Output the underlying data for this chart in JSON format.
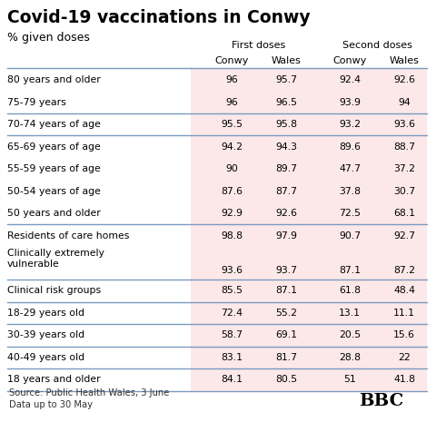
{
  "title": "Covid-19 vaccinations in Conwy",
  "subtitle": "% given doses",
  "col_headers_group": [
    "First doses",
    "Second doses"
  ],
  "col_headers": [
    "Conwy",
    "Wales",
    "Conwy",
    "Wales"
  ],
  "rows": [
    [
      "80 years and older",
      "96",
      "95.7",
      "92.4",
      "92.6"
    ],
    [
      "75-79 years",
      "96",
      "96.5",
      "93.9",
      "94"
    ],
    [
      "70-74 years of age",
      "95.5",
      "95.8",
      "93.2",
      "93.6"
    ],
    [
      "65-69 years of age",
      "94.2",
      "94.3",
      "89.6",
      "88.7"
    ],
    [
      "55-59 years of age",
      "90",
      "89.7",
      "47.7",
      "37.2"
    ],
    [
      "50-54 years of age",
      "87.6",
      "87.7",
      "37.8",
      "30.7"
    ],
    [
      "50 years and older",
      "92.9",
      "92.6",
      "72.5",
      "68.1"
    ],
    [
      "Residents of care homes",
      "98.8",
      "97.9",
      "90.7",
      "92.7"
    ],
    [
      "Clinically extremely\nvulnerable",
      "93.6",
      "93.7",
      "87.1",
      "87.2"
    ],
    [
      "Clinical risk groups",
      "85.5",
      "87.1",
      "61.8",
      "48.4"
    ],
    [
      "18-29 years old",
      "72.4",
      "55.2",
      "13.1",
      "11.1"
    ],
    [
      "30-39 years old",
      "58.7",
      "69.1",
      "20.5",
      "15.6"
    ],
    [
      "40-49 years old",
      "83.1",
      "81.7",
      "28.8",
      "22"
    ],
    [
      "18 years and older",
      "84.1",
      "80.5",
      "51",
      "41.8"
    ]
  ],
  "footer_left": "Source: Public Health Wales, 3 June\nData up to 30 May",
  "footer_right": "BBC",
  "bg_color": "#ffffff",
  "row_bg_pink": "#fce8e8",
  "separator_color": "#7a9abf",
  "title_color": "#000000",
  "data_color": "#000000",
  "label_color": "#000000",
  "separator_after": [
    1,
    2,
    6,
    8,
    9,
    10,
    11,
    12,
    13
  ],
  "tall_row_index": 8
}
